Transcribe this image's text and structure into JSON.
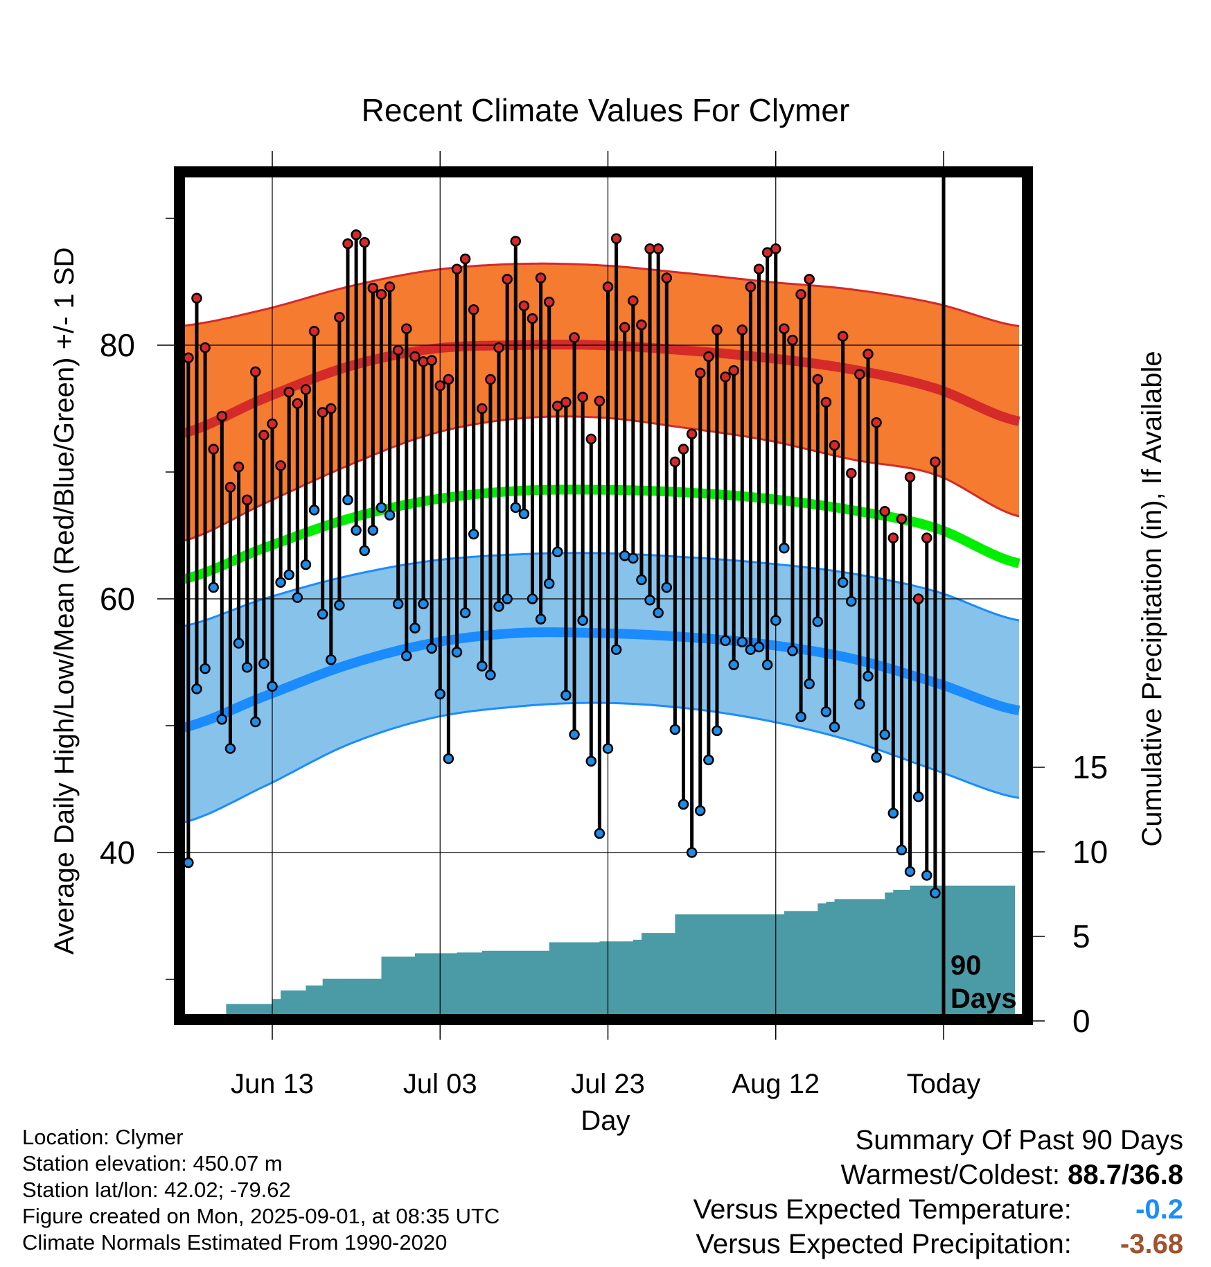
{
  "chart_data": {
    "type": "line",
    "title": "Recent Climate Values For Clymer",
    "xlabel": "Day",
    "ylabel": "Average Daily High/Low/Mean (Red/Blue/Green) +/- 1 SD",
    "y2label": "Cumulative Precipitation (in), If Available",
    "ylim": [
      27.5,
      94.0
    ],
    "y2lim": [
      0,
      50
    ],
    "x_tick_labels": [
      {
        "day": 11,
        "label": "Jun 13"
      },
      {
        "day": 31,
        "label": "Jul 03"
      },
      {
        "day": 51,
        "label": "Jul 23"
      },
      {
        "day": 71,
        "label": "Aug 12"
      },
      {
        "day": 91,
        "label": "Today"
      }
    ],
    "y_ticks": [
      40,
      60,
      80
    ],
    "y2_ticks": [
      0,
      5,
      10,
      15
    ],
    "marker_label": "90\nDays",
    "grid": true,
    "colors": {
      "high_band": "#f47b30",
      "high_mean": "#d42a2a",
      "low_band": "#86c2ea",
      "low_mean": "#1a8cff",
      "mean": "#00ee00",
      "precip": "#4a9ba5",
      "high_dot": "#d42a2a",
      "low_dot": "#1f8ce8",
      "neg_temp": "#1a8cff",
      "neg_precip": "#a0522d"
    },
    "normals_days": [
      0,
      10,
      20,
      30,
      40,
      50,
      60,
      70,
      80,
      90,
      100
    ],
    "normal_high_upper": [
      81.5,
      82.8,
      84.6,
      85.9,
      86.4,
      86.3,
      85.7,
      85.0,
      84.4,
      83.3,
      81.5
    ],
    "normal_high_mean": [
      73.0,
      75.8,
      78.3,
      79.7,
      80.0,
      80.0,
      79.6,
      79.0,
      78.1,
      76.6,
      74.0
    ],
    "normal_high_lower": [
      64.5,
      67.5,
      70.5,
      73.0,
      74.2,
      74.3,
      73.5,
      72.5,
      71.0,
      69.8,
      66.5
    ],
    "normal_mean": [
      61.5,
      64.0,
      66.3,
      67.8,
      68.5,
      68.6,
      68.4,
      67.9,
      67.0,
      65.6,
      62.8
    ],
    "normal_low_upper": [
      57.8,
      60.0,
      61.8,
      63.0,
      63.5,
      63.6,
      63.3,
      62.8,
      62.0,
      60.6,
      58.3
    ],
    "normal_low_mean": [
      49.8,
      52.3,
      54.8,
      56.5,
      57.3,
      57.3,
      57.0,
      56.4,
      55.3,
      53.4,
      51.2
    ],
    "normal_low_lower": [
      42.3,
      45.2,
      48.5,
      50.6,
      51.5,
      51.8,
      51.4,
      50.4,
      48.8,
      46.5,
      44.3
    ],
    "highs": [
      79.0,
      83.7,
      79.8,
      71.8,
      74.4,
      68.8,
      70.4,
      67.8,
      77.9,
      72.9,
      73.8,
      70.5,
      76.3,
      75.4,
      76.5,
      81.1,
      74.7,
      75.0,
      82.2,
      88.0,
      88.7,
      88.1,
      84.5,
      84.0,
      84.6,
      79.6,
      81.3,
      79.1,
      78.7,
      78.8,
      76.8,
      77.3,
      86.0,
      86.8,
      82.8,
      75.0,
      77.3,
      79.8,
      85.2,
      88.2,
      83.1,
      82.1,
      85.3,
      83.4,
      75.2,
      75.5,
      80.6,
      75.9,
      72.6,
      75.6,
      84.6,
      88.4,
      81.4,
      83.5,
      81.6,
      87.6,
      87.6,
      85.3,
      70.8,
      71.8,
      73.0,
      77.8,
      79.1,
      81.2,
      77.5,
      78.0,
      81.2,
      84.6,
      86.0,
      87.3,
      87.6,
      81.3,
      80.4,
      84.0,
      85.2,
      77.3,
      75.5,
      72.1,
      80.7,
      69.9,
      77.7,
      79.3,
      73.9,
      66.9,
      64.8,
      66.3,
      69.6,
      60.0,
      64.8,
      70.8
    ],
    "lows": [
      39.2,
      52.9,
      54.5,
      60.9,
      50.5,
      48.2,
      56.5,
      54.6,
      50.3,
      54.9,
      53.1,
      61.3,
      61.9,
      60.1,
      62.7,
      67.0,
      58.8,
      55.2,
      59.5,
      67.8,
      65.4,
      63.8,
      65.4,
      67.2,
      66.6,
      59.6,
      55.5,
      57.7,
      59.6,
      56.1,
      52.5,
      47.4,
      55.8,
      58.9,
      65.1,
      54.7,
      54.0,
      59.4,
      60.0,
      67.2,
      66.7,
      60.0,
      58.4,
      61.2,
      63.7,
      52.4,
      49.3,
      58.3,
      47.2,
      41.5,
      48.2,
      56.0,
      63.4,
      63.2,
      61.5,
      59.9,
      58.9,
      60.9,
      49.7,
      43.8,
      40.0,
      43.3,
      47.3,
      49.6,
      56.7,
      54.8,
      56.6,
      56.0,
      56.2,
      54.8,
      58.3,
      64.0,
      55.9,
      50.7,
      53.3,
      58.2,
      51.1,
      49.9,
      61.3,
      59.8,
      51.7,
      53.9,
      47.5,
      49.3,
      43.1,
      40.2,
      38.5,
      44.4,
      38.2,
      36.8
    ],
    "precip_steps": [
      {
        "day": 5,
        "value": 0.0
      },
      {
        "day": 5.5,
        "value": 1.0
      },
      {
        "day": 10,
        "value": 1.0
      },
      {
        "day": 11,
        "value": 1.3
      },
      {
        "day": 12,
        "value": 1.8
      },
      {
        "day": 14,
        "value": 1.8
      },
      {
        "day": 15,
        "value": 2.1
      },
      {
        "day": 17,
        "value": 2.5
      },
      {
        "day": 22,
        "value": 2.5
      },
      {
        "day": 24,
        "value": 3.8
      },
      {
        "day": 27,
        "value": 3.8
      },
      {
        "day": 28,
        "value": 4.0
      },
      {
        "day": 33,
        "value": 4.05
      },
      {
        "day": 36,
        "value": 4.15
      },
      {
        "day": 43,
        "value": 4.15
      },
      {
        "day": 44,
        "value": 4.65
      },
      {
        "day": 50,
        "value": 4.7
      },
      {
        "day": 54,
        "value": 4.8
      },
      {
        "day": 55,
        "value": 5.2
      },
      {
        "day": 58,
        "value": 5.2
      },
      {
        "day": 59,
        "value": 6.3
      },
      {
        "day": 71,
        "value": 6.3
      },
      {
        "day": 72,
        "value": 6.5
      },
      {
        "day": 75,
        "value": 6.5
      },
      {
        "day": 76,
        "value": 6.95
      },
      {
        "day": 77,
        "value": 7.05
      },
      {
        "day": 78,
        "value": 7.2
      },
      {
        "day": 83,
        "value": 7.2
      },
      {
        "day": 84,
        "value": 7.6
      },
      {
        "day": 85,
        "value": 7.75
      },
      {
        "day": 86,
        "value": 7.75
      },
      {
        "day": 87,
        "value": 8.0
      },
      {
        "day": 99.5,
        "value": 8.0
      }
    ]
  },
  "footer_left": {
    "location": "Location: Clymer",
    "elevation": "Station elevation: 450.07 m",
    "latlon": "Station lat/lon: 42.02; -79.62",
    "created": "Figure created on Mon, 2025-09-01, at 08:35 UTC",
    "normals": "Climate Normals Estimated From 1990-2020"
  },
  "summary": {
    "heading": "Summary Of Past 90 Days",
    "warm_cold_label": "Warmest/Coldest:",
    "warm_cold_value": "88.7/36.8",
    "temp_label": "Versus Expected Temperature:",
    "temp_value": "-0.2",
    "precip_label": "Versus Expected Precipitation:",
    "precip_value": "-3.68"
  }
}
